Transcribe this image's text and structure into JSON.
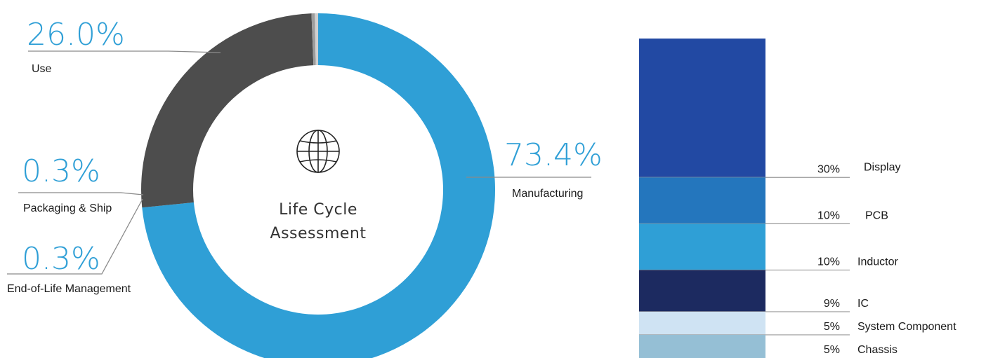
{
  "chart_data": [
    {
      "type": "pie",
      "title": "Life Cycle Assessment",
      "center_icon": "globe-icon",
      "categories": [
        "Manufacturing",
        "Use",
        "Packaging & Ship",
        "End-of-Life Management"
      ],
      "values": [
        73.4,
        26.0,
        0.3,
        0.3
      ],
      "value_labels": [
        "73.4%",
        "26.0%",
        "0.3%",
        "0.3%"
      ],
      "colors": [
        "#2f9fd6",
        "#4d4d4d",
        "#9c9c9c",
        "#d0d0d0"
      ]
    },
    {
      "type": "bar",
      "stacked": true,
      "categories": [
        "Display",
        "PCB",
        "Inductor",
        "IC",
        "System Component",
        "Chassis"
      ],
      "values": [
        30,
        10,
        10,
        9,
        5,
        5
      ],
      "value_labels": [
        "30%",
        "10%",
        "10%",
        "9%",
        "5%",
        "5%"
      ],
      "colors": [
        "#2249a3",
        "#2476bd",
        "#2f9fd6",
        "#1c2a60",
        "#cfe3f3",
        "#95bfd5"
      ]
    }
  ]
}
